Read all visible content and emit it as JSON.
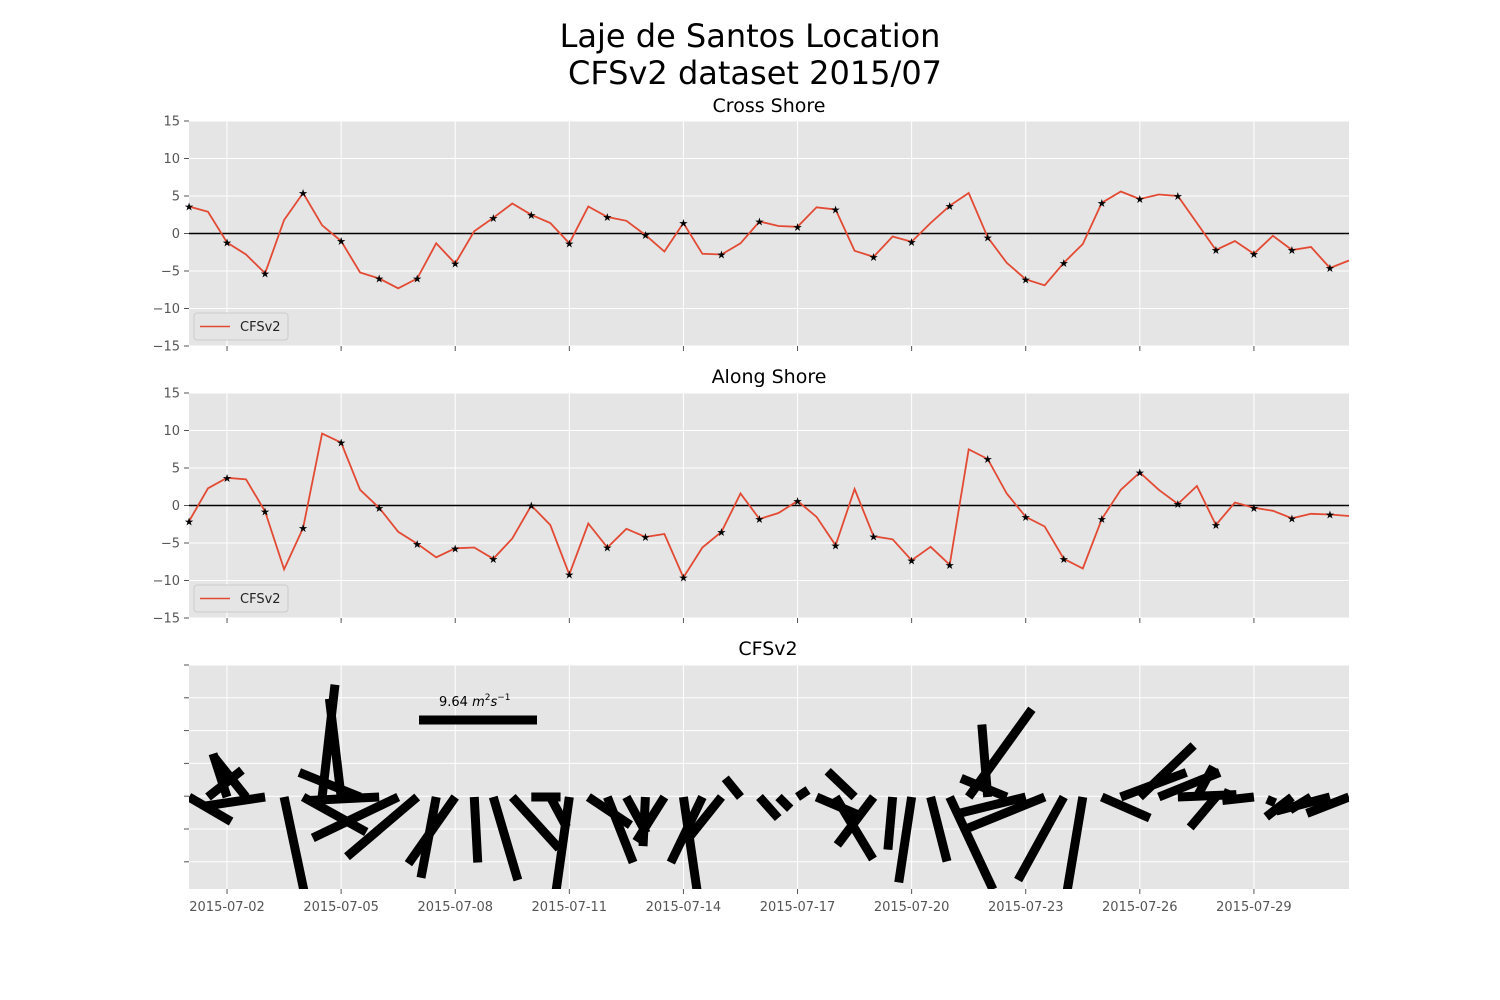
{
  "figure": {
    "title_line1": "Laje de Santos Location",
    "title_line2": "CFSv2 dataset 2015/07"
  },
  "colors": {
    "series": "#e24a33",
    "panel_bg": "#e5e5e5",
    "grid": "#ffffff",
    "zero_line": "#000000",
    "tick_text": "#555555",
    "stick": "#000000"
  },
  "chart_data": [
    {
      "type": "line",
      "title": "Cross Shore",
      "ylim": [
        -15,
        15
      ],
      "yticks": [
        -15,
        -10,
        -5,
        0,
        5,
        10,
        15
      ],
      "ytick_labels": [
        "−15",
        "−10",
        "−5",
        "0",
        "5",
        "10",
        "15"
      ],
      "grid": true,
      "zero_line": true,
      "legend": {
        "position": "lower-left",
        "entries": [
          "CFSv2"
        ]
      },
      "xlim": [
        0.0,
        30.5
      ],
      "x_step_days": 0.5,
      "x_start": "2015-07-01",
      "series": [
        {
          "name": "CFSv2",
          "values": [
            3.6,
            2.9,
            -1.2,
            -2.8,
            -5.3,
            1.8,
            5.4,
            1.1,
            -1.0,
            -5.2,
            -6.0,
            -7.3,
            -6.0,
            -1.3,
            -4.0,
            0.3,
            2.1,
            4.0,
            2.5,
            1.4,
            -1.3,
            3.6,
            2.2,
            1.7,
            -0.2,
            -2.4,
            1.4,
            -2.7,
            -2.8,
            -1.3,
            1.6,
            1.0,
            0.9,
            3.5,
            3.2,
            -2.3,
            -3.1,
            -0.4,
            -1.1,
            1.4,
            3.7,
            5.4,
            -0.5,
            -3.9,
            -6.1,
            -6.9,
            -3.9,
            -1.4,
            4.1,
            5.6,
            4.6,
            5.2,
            5.0,
            1.4,
            -2.2,
            -1.0,
            -2.7,
            -0.3,
            -2.2,
            -1.8,
            -4.6,
            -3.6
          ],
          "markers_every": 2
        }
      ]
    },
    {
      "type": "line",
      "title": "Along Shore",
      "ylim": [
        -15,
        15
      ],
      "yticks": [
        -15,
        -10,
        -5,
        0,
        5,
        10,
        15
      ],
      "ytick_labels": [
        "−15",
        "−10",
        "−5",
        "0",
        "5",
        "10",
        "15"
      ],
      "grid": true,
      "zero_line": true,
      "legend": {
        "position": "lower-left",
        "entries": [
          "CFSv2"
        ]
      },
      "xlim": [
        0.0,
        30.5
      ],
      "x_step_days": 0.5,
      "x_start": "2015-07-01",
      "series": [
        {
          "name": "CFSv2",
          "values": [
            -2.1,
            2.3,
            3.7,
            3.5,
            -0.8,
            -8.5,
            -3.0,
            9.6,
            8.4,
            2.1,
            -0.3,
            -3.5,
            -5.1,
            -6.9,
            -5.7,
            -5.6,
            -7.1,
            -4.4,
            0.0,
            -2.6,
            -9.2,
            -2.4,
            -5.6,
            -3.1,
            -4.2,
            -3.8,
            -9.6,
            -5.6,
            -3.5,
            1.6,
            -1.8,
            -1.0,
            0.6,
            -1.5,
            -5.3,
            2.2,
            -4.1,
            -4.5,
            -7.3,
            -5.5,
            -7.9,
            7.5,
            6.2,
            1.6,
            -1.5,
            -2.8,
            -7.1,
            -8.4,
            -1.8,
            2.1,
            4.4,
            2.1,
            0.2,
            2.6,
            -2.6,
            0.4,
            -0.3,
            -0.7,
            -1.7,
            -1.1,
            -1.2,
            -1.4
          ],
          "markers_every": 2
        }
      ]
    },
    {
      "type": "stick",
      "title": "CFSv2",
      "description_of_encoding": "wind stress vectors (u = cross shore, v = along shore)",
      "x_tick_labels": [
        "2015-07-02",
        "2015-07-05",
        "2015-07-08",
        "2015-07-11",
        "2015-07-14",
        "2015-07-17",
        "2015-07-20",
        "2015-07-23",
        "2015-07-26",
        "2015-07-29"
      ],
      "x_tick_days": [
        1,
        4,
        7,
        10,
        13,
        16,
        19,
        22,
        25,
        28
      ],
      "scale": {
        "value": 9.64,
        "label_text": "9.64 ",
        "label_unit": "m",
        "label_sup1": "2",
        "label_s": "s",
        "label_sup2": "−1"
      },
      "grid": true
    }
  ]
}
